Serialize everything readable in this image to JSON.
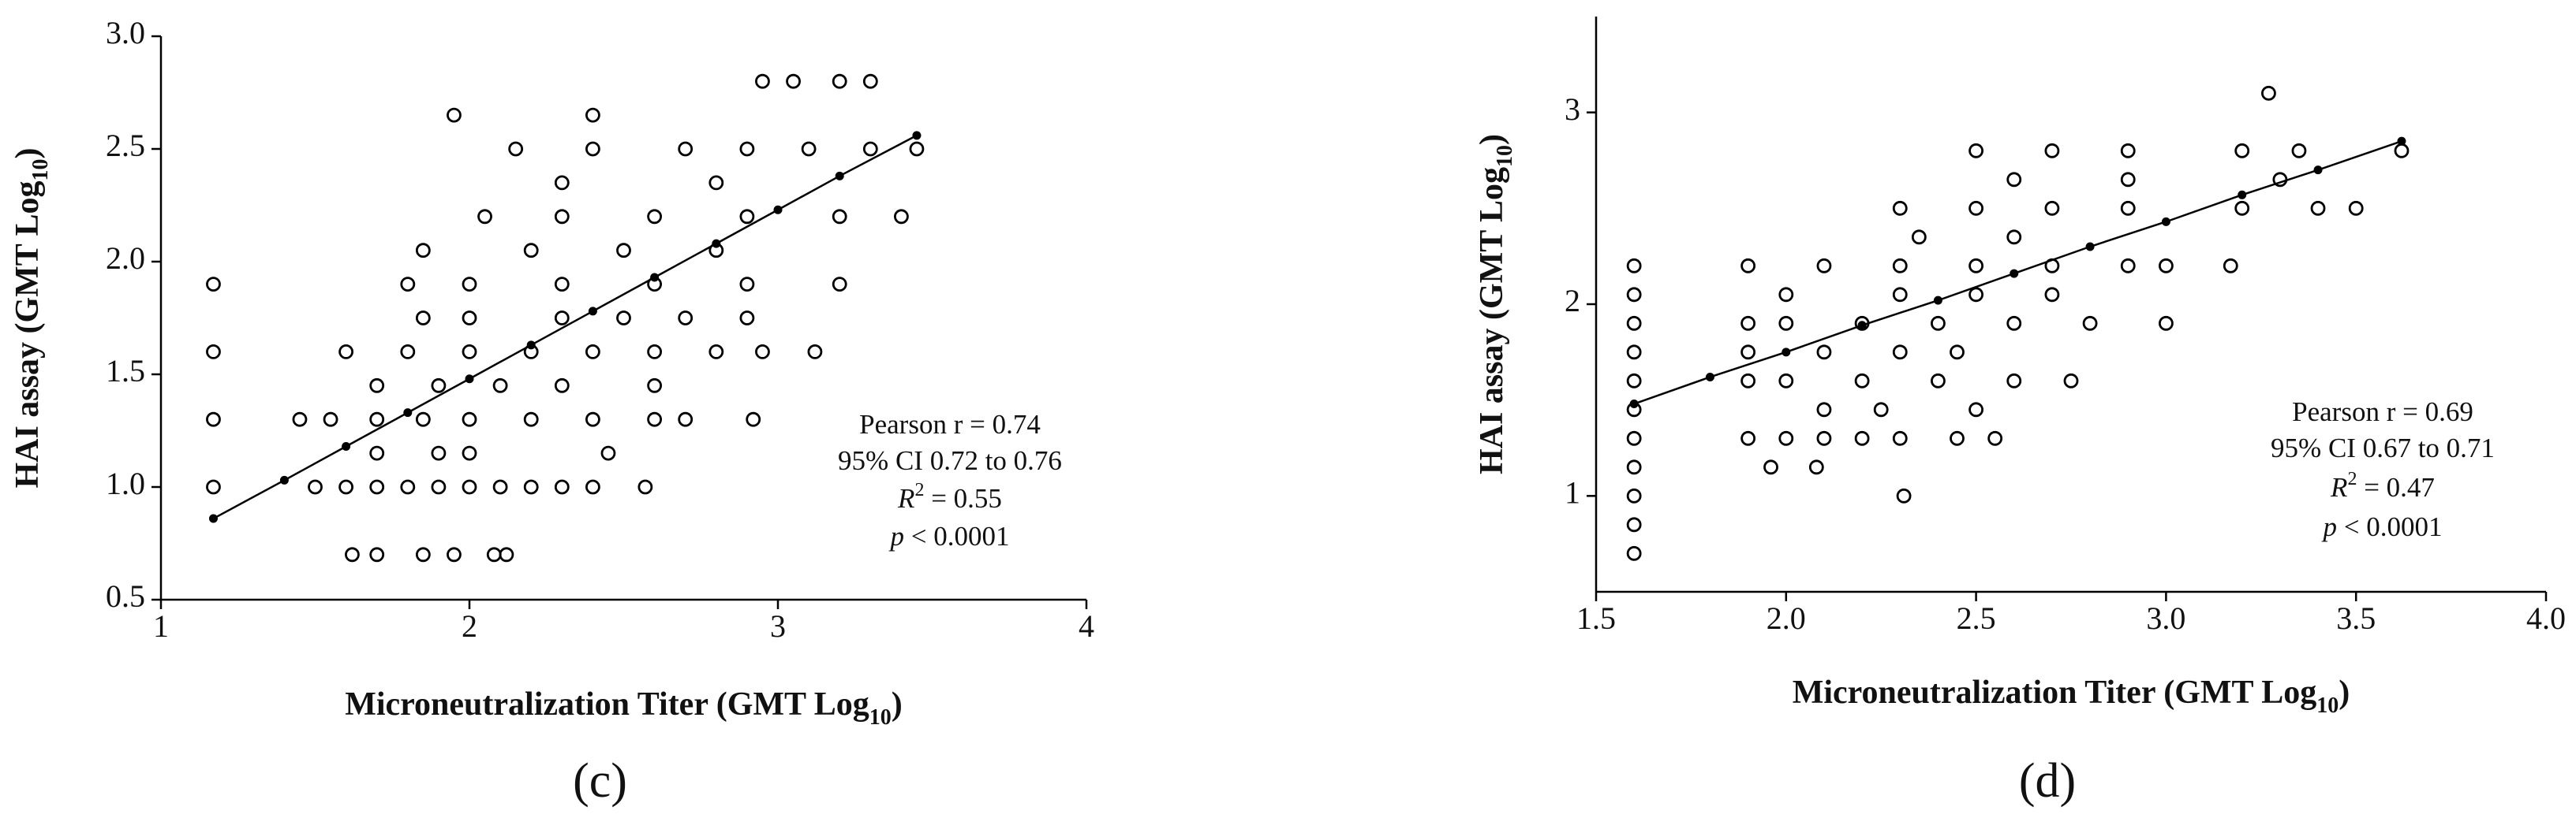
{
  "chart_data": [
    {
      "type": "scatter",
      "panel_label": "(c)",
      "x_label": [
        "Microneutralization Titer (GMT Log",
        "10",
        ")"
      ],
      "y_label": [
        "HAI assay (GMT Log",
        "10",
        ")"
      ],
      "annotations": [
        [
          "Pearson r = 0.74"
        ],
        [
          "95% CI  0.72 to 0.76"
        ],
        [
          "R",
          "2",
          " = 0.55"
        ],
        [
          "p",
          " < 0.0001"
        ]
      ],
      "xlim": [
        1,
        4
      ],
      "xticks": [
        1,
        2,
        3,
        4
      ],
      "ylim": [
        0.5,
        3.0
      ],
      "yticks": [
        0.5,
        {
          "value": 1,
          "label": "1.0"
        },
        1.5,
        {
          "value": 2,
          "label": "2.0"
        },
        2.5,
        {
          "value": 3,
          "label": "3.0"
        }
      ],
      "color": "#000000",
      "points": {
        "x": [
          1.17,
          1.17,
          1.17,
          1.17,
          1.62,
          1.7,
          1.85,
          1.95,
          2.08,
          2.12,
          1.5,
          1.6,
          1.7,
          1.8,
          1.9,
          2.0,
          2.1,
          2.2,
          2.3,
          2.4,
          2.57,
          1.7,
          1.9,
          2.0,
          2.45,
          1.45,
          1.55,
          1.7,
          1.85,
          2.0,
          2.2,
          2.4,
          2.6,
          2.7,
          2.92,
          1.7,
          1.9,
          2.1,
          2.3,
          2.6,
          1.6,
          1.8,
          2.0,
          2.2,
          2.4,
          2.6,
          2.8,
          2.95,
          3.12,
          1.85,
          2.0,
          2.3,
          2.5,
          2.7,
          2.9,
          1.8,
          2.0,
          2.3,
          2.6,
          2.9,
          3.2,
          1.85,
          2.2,
          2.5,
          2.8,
          2.05,
          2.3,
          2.6,
          2.9,
          3.2,
          3.4,
          2.3,
          2.8,
          2.15,
          2.4,
          2.7,
          2.9,
          3.1,
          3.3,
          3.45,
          1.95,
          2.4,
          2.95,
          3.05,
          3.2,
          3.3
        ],
        "y": [
          1.0,
          1.3,
          1.6,
          1.9,
          0.7,
          0.7,
          0.7,
          0.7,
          0.7,
          0.7,
          1.0,
          1.0,
          1.0,
          1.0,
          1.0,
          1.0,
          1.0,
          1.0,
          1.0,
          1.0,
          1.0,
          1.15,
          1.15,
          1.15,
          1.15,
          1.3,
          1.3,
          1.3,
          1.3,
          1.3,
          1.3,
          1.3,
          1.3,
          1.3,
          1.3,
          1.45,
          1.45,
          1.45,
          1.45,
          1.45,
          1.6,
          1.6,
          1.6,
          1.6,
          1.6,
          1.6,
          1.6,
          1.6,
          1.6,
          1.75,
          1.75,
          1.75,
          1.75,
          1.75,
          1.75,
          1.9,
          1.9,
          1.9,
          1.9,
          1.9,
          1.9,
          2.05,
          2.05,
          2.05,
          2.05,
          2.2,
          2.2,
          2.2,
          2.2,
          2.2,
          2.2,
          2.35,
          2.35,
          2.5,
          2.5,
          2.5,
          2.5,
          2.5,
          2.5,
          2.5,
          2.65,
          2.65,
          2.8,
          2.8,
          2.8,
          2.8
        ]
      },
      "fit": {
        "x": [
          1.17,
          1.4,
          1.6,
          1.8,
          2.0,
          2.2,
          2.4,
          2.6,
          2.8,
          3.0,
          3.2,
          3.45
        ],
        "y": [
          0.86,
          1.03,
          1.18,
          1.33,
          1.48,
          1.63,
          1.78,
          1.93,
          2.08,
          2.23,
          2.38,
          2.56
        ]
      }
    },
    {
      "type": "scatter",
      "panel_label": "(d)",
      "x_label": [
        "Microneutralization Titer (GMT Log",
        "10",
        ")"
      ],
      "y_label": [
        "HAI assay (GMT  Log",
        "10",
        ")"
      ],
      "annotations": [
        [
          "Pearson r = 0.69"
        ],
        [
          "95% CI  0.67 to 0.71"
        ],
        [
          "R",
          "2",
          " = 0.47"
        ],
        [
          "p",
          " < 0.0001"
        ]
      ],
      "xlim": [
        1.5,
        4.0
      ],
      "xticks": [
        1.5,
        {
          "value": 2,
          "label": "2.0"
        },
        2.5,
        {
          "value": 3,
          "label": "3.0"
        },
        3.5,
        {
          "value": 4,
          "label": "4.0"
        }
      ],
      "ylim": [
        0.5,
        3.5
      ],
      "yticks": [
        1,
        2,
        3
      ],
      "color": "#000000",
      "points": {
        "x": [
          1.6,
          1.6,
          1.6,
          1.6,
          1.6,
          1.6,
          1.6,
          1.6,
          1.6,
          1.6,
          1.6,
          1.9,
          2.0,
          2.1,
          2.2,
          2.3,
          2.45,
          2.55,
          2.1,
          2.25,
          2.5,
          1.9,
          2.0,
          2.2,
          2.4,
          2.6,
          2.75,
          1.9,
          2.1,
          2.3,
          2.45,
          1.9,
          2.0,
          2.2,
          2.4,
          2.6,
          2.8,
          3.0,
          2.0,
          2.3,
          2.5,
          2.7,
          1.9,
          2.1,
          2.3,
          2.5,
          2.7,
          2.9,
          3.0,
          3.17,
          2.35,
          2.6,
          2.3,
          2.5,
          2.7,
          2.9,
          3.2,
          3.4,
          3.5,
          2.6,
          2.9,
          3.3,
          2.5,
          2.7,
          2.9,
          3.2,
          3.35,
          3.62,
          3.27,
          2.31,
          1.96,
          2.08
        ],
        "y": [
          0.7,
          0.85,
          1.0,
          1.15,
          1.3,
          1.45,
          1.6,
          1.75,
          1.9,
          2.05,
          2.2,
          1.3,
          1.3,
          1.3,
          1.3,
          1.3,
          1.3,
          1.3,
          1.45,
          1.45,
          1.45,
          1.6,
          1.6,
          1.6,
          1.6,
          1.6,
          1.6,
          1.75,
          1.75,
          1.75,
          1.75,
          1.9,
          1.9,
          1.9,
          1.9,
          1.9,
          1.9,
          1.9,
          2.05,
          2.05,
          2.05,
          2.05,
          2.2,
          2.2,
          2.2,
          2.2,
          2.2,
          2.2,
          2.2,
          2.2,
          2.35,
          2.35,
          2.5,
          2.5,
          2.5,
          2.5,
          2.5,
          2.5,
          2.5,
          2.65,
          2.65,
          2.65,
          2.8,
          2.8,
          2.8,
          2.8,
          2.8,
          2.8,
          3.1,
          1.0,
          1.15,
          1.15
        ]
      },
      "fit": {
        "x": [
          1.6,
          1.8,
          2.0,
          2.2,
          2.4,
          2.6,
          2.8,
          3.0,
          3.2,
          3.4,
          3.62
        ],
        "y": [
          1.48,
          1.62,
          1.75,
          1.89,
          2.02,
          2.16,
          2.3,
          2.43,
          2.57,
          2.7,
          2.85
        ]
      }
    }
  ]
}
